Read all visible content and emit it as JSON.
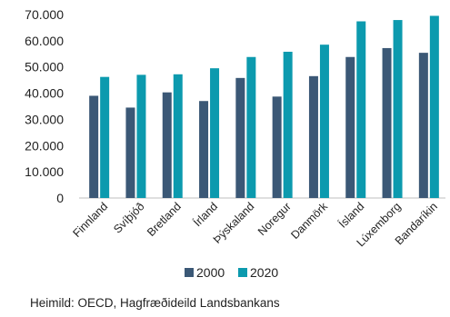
{
  "chart_data": {
    "type": "bar",
    "categories": [
      "Finnland",
      "Svíþjóð",
      "Bretland",
      "Írland",
      "Þýskaland",
      "Noregur",
      "Danmörk",
      "Ísland",
      "Lúxemborg",
      "Bandaríkin"
    ],
    "series": [
      {
        "name": "2000",
        "color": "#3B5876",
        "values": [
          39000,
          34500,
          40300,
          37000,
          45800,
          38700,
          46500,
          53800,
          57200,
          55400
        ]
      },
      {
        "name": "2020",
        "color": "#0C9AAE",
        "values": [
          46200,
          47000,
          47200,
          49500,
          53800,
          55800,
          58500,
          67400,
          67900,
          69500
        ]
      }
    ],
    "ylim": [
      0,
      70000
    ],
    "yticks": [
      0,
      10000,
      20000,
      30000,
      40000,
      50000,
      60000,
      70000
    ],
    "ytick_labels": [
      "0",
      "10.000",
      "20.000",
      "30.000",
      "40.000",
      "50.000",
      "60.000",
      "70.000"
    ],
    "grid": false,
    "legend": "bottom",
    "title": "",
    "xlabel": "",
    "ylabel": ""
  },
  "source": "Heimild: OECD, Hagfræðideild Landsbankans"
}
